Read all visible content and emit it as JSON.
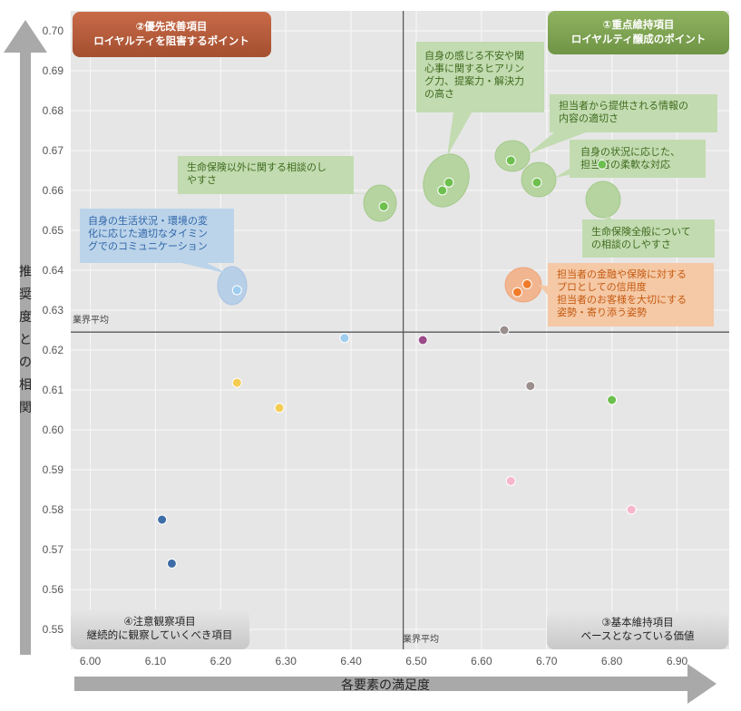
{
  "chart_data": {
    "type": "scatter",
    "title": "",
    "xlabel": "各要素の満足度",
    "ylabel": "推奨度との相関",
    "xlim": [
      5.97,
      6.98
    ],
    "ylim": [
      0.545,
      0.705
    ],
    "xticks": [
      "6.00",
      "6.10",
      "6.20",
      "6.30",
      "6.40",
      "6.50",
      "6.60",
      "6.70",
      "6.80",
      "6.90"
    ],
    "yticks": [
      "0.55",
      "0.56",
      "0.57",
      "0.58",
      "0.59",
      "0.60",
      "0.61",
      "0.62",
      "0.63",
      "0.64",
      "0.65",
      "0.66",
      "0.67",
      "0.68",
      "0.69",
      "0.70"
    ],
    "grid": true,
    "industry_average": {
      "x": 6.48,
      "y": 0.6245,
      "x_label": "業界平均",
      "y_label": "業界平均"
    },
    "quadrants": {
      "q1": {
        "line1": "①重点維持項目",
        "line2": "ロイヤルティ醸成のポイント",
        "color": "#7ea152"
      },
      "q2": {
        "line1": "②優先改善項目",
        "line2": "ロイヤルティを阻害するポイント",
        "color": "#b85c3c"
      },
      "q3": {
        "line1": "③基本維持項目",
        "line2": "ベースとなっている価値",
        "color": "#d3d3d3"
      },
      "q4": {
        "line1": "④注意観察項目",
        "line2": "継続的に観察していくべき項目",
        "color": "#d3d3d3"
      }
    },
    "points": [
      {
        "x": 6.45,
        "y": 0.656,
        "color": "#6dbf4e"
      },
      {
        "x": 6.54,
        "y": 0.66,
        "color": "#6dbf4e"
      },
      {
        "x": 6.55,
        "y": 0.662,
        "color": "#6dbf4e"
      },
      {
        "x": 6.645,
        "y": 0.6675,
        "color": "#6dbf4e"
      },
      {
        "x": 6.685,
        "y": 0.662,
        "color": "#6dbf4e"
      },
      {
        "x": 6.785,
        "y": 0.6665,
        "color": "#6dbf4e"
      },
      {
        "x": 6.8,
        "y": 0.6075,
        "color": "#6dbf4e"
      },
      {
        "x": 6.225,
        "y": 0.635,
        "color": "#9ecdee"
      },
      {
        "x": 6.655,
        "y": 0.6345,
        "color": "#f07c2a"
      },
      {
        "x": 6.67,
        "y": 0.6365,
        "color": "#f07c2a"
      },
      {
        "x": 6.39,
        "y": 0.623,
        "color": "#9ecdee"
      },
      {
        "x": 6.51,
        "y": 0.6225,
        "color": "#9b4a8a"
      },
      {
        "x": 6.635,
        "y": 0.625,
        "color": "#9a8f8c"
      },
      {
        "x": 6.675,
        "y": 0.611,
        "color": "#9a8f8c"
      },
      {
        "x": 6.225,
        "y": 0.6118,
        "color": "#f4cc52"
      },
      {
        "x": 6.29,
        "y": 0.6055,
        "color": "#f4cc52"
      },
      {
        "x": 6.645,
        "y": 0.5872,
        "color": "#f6b6cb"
      },
      {
        "x": 6.83,
        "y": 0.58,
        "color": "#f6b6cb"
      },
      {
        "x": 6.11,
        "y": 0.5775,
        "color": "#3d6da6"
      },
      {
        "x": 6.125,
        "y": 0.5665,
        "color": "#3d6da6"
      }
    ],
    "annotations": [
      {
        "name": "life-insurance-other-consult",
        "lines": [
          "生命保険以外に関する相談のし",
          "やすさ"
        ],
        "color": "#3e6b1e",
        "fill": "#c2dbb0"
      },
      {
        "name": "anxiety-hearing",
        "lines": [
          "自身の感じる不安や関",
          "心事に関するヒアリン",
          "グ力、提案力・解決力",
          "の高さ"
        ],
        "color": "#3e6b1e",
        "fill": "#c2dbb0"
      },
      {
        "name": "info-appropriateness",
        "lines": [
          "担当者から提供される情報の",
          "内容の適切さ"
        ],
        "color": "#3e6b1e",
        "fill": "#c2dbb0"
      },
      {
        "name": "flexible-response",
        "lines": [
          "自身の状況に応じた、",
          "担当者の柔軟な対応"
        ],
        "color": "#3e6b1e",
        "fill": "#c2dbb0"
      },
      {
        "name": "life-insurance-general-consult",
        "lines": [
          "生命保険全般について",
          "の相談のしやすさ"
        ],
        "color": "#3e6b1e",
        "fill": "#c2dbb0"
      },
      {
        "name": "timely-communication",
        "lines": [
          "自身の生活状況・環境の変",
          "化に応じた適切なタイミン",
          "グでのコミュニケーション"
        ],
        "color": "#2e66a8",
        "fill": "#bcd4ea"
      },
      {
        "name": "trust-and-care",
        "lines": [
          "担当者の金融や保険に対する",
          "プロとしての信用度",
          "担当者のお客様を大切にする",
          "姿勢・寄り添う姿勢"
        ],
        "color": "#c55a11",
        "fill": "#f5c9a6"
      }
    ]
  }
}
